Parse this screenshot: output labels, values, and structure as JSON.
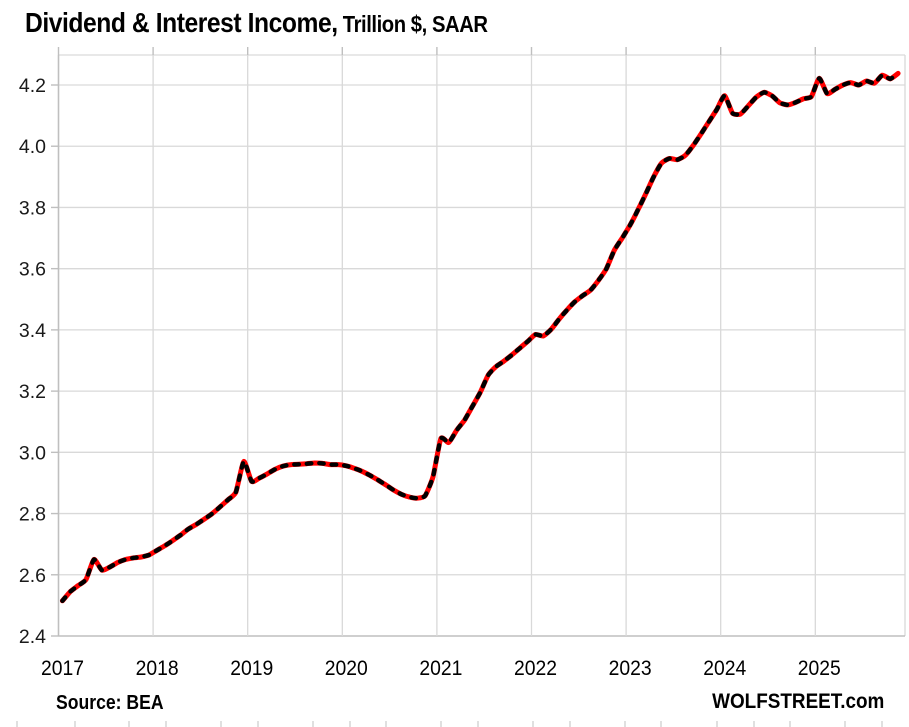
{
  "header": {
    "title_main": "Dividend & Interest Income,",
    "title_sub": " Trillion $, SAAR"
  },
  "footer": {
    "source": "Source: BEA",
    "brand": "WOLFSTREET.com"
  },
  "colors": {
    "line": "#FF0000",
    "line_dash_overlay": "#000000",
    "gridline": "#d9d9d9",
    "axis": "#bfbfbf",
    "tick": "#bfbfbf",
    "label": "#1a1a1a",
    "background": "#ffffff"
  },
  "chart_data": {
    "type": "line",
    "title": "Dividend & Interest Income, Trillion $, SAAR",
    "xlabel": "",
    "ylabel": "",
    "x_ticks": [
      "2017",
      "2018",
      "2019",
      "2020",
      "2021",
      "2022",
      "2023",
      "2024",
      "2025"
    ],
    "y_ticks": [
      "2.4",
      "2.6",
      "2.8",
      "3.0",
      "3.2",
      "3.4",
      "3.6",
      "3.8",
      "4.0",
      "4.2"
    ],
    "ylim": [
      2.4,
      4.3
    ],
    "xlim_years": [
      2017,
      2025.95
    ],
    "grid": true,
    "legend_position": "none",
    "series": [
      {
        "name": "Dividend & interest income, Trillion $, SAAR",
        "frequency": "monthly",
        "start": "2017-01",
        "end": "2025-11",
        "style": "solid red with black dashed overlay",
        "values": [
          2.515,
          2.545,
          2.565,
          2.585,
          2.65,
          2.615,
          2.625,
          2.64,
          2.65,
          2.655,
          2.658,
          2.665,
          2.68,
          2.695,
          2.712,
          2.73,
          2.75,
          2.765,
          2.782,
          2.8,
          2.822,
          2.845,
          2.87,
          2.97,
          2.905,
          2.916,
          2.93,
          2.945,
          2.955,
          2.96,
          2.961,
          2.963,
          2.965,
          2.964,
          2.96,
          2.96,
          2.956,
          2.948,
          2.938,
          2.925,
          2.91,
          2.894,
          2.877,
          2.863,
          2.854,
          2.85,
          2.858,
          2.92,
          3.045,
          3.032,
          3.072,
          3.105,
          3.15,
          3.196,
          3.252,
          3.28,
          3.298,
          3.318,
          3.34,
          3.362,
          3.385,
          3.38,
          3.402,
          3.435,
          3.465,
          3.492,
          3.512,
          3.53,
          3.562,
          3.6,
          3.66,
          3.7,
          3.742,
          3.792,
          3.845,
          3.9,
          3.945,
          3.96,
          3.956,
          3.97,
          4.002,
          4.04,
          4.08,
          4.12,
          4.165,
          4.108,
          4.105,
          4.132,
          4.16,
          4.176,
          4.165,
          4.142,
          4.135,
          4.143,
          4.155,
          4.162,
          4.222,
          4.172,
          4.186,
          4.2,
          4.208,
          4.2,
          4.213,
          4.206,
          4.232,
          4.22,
          4.238
        ]
      }
    ]
  }
}
